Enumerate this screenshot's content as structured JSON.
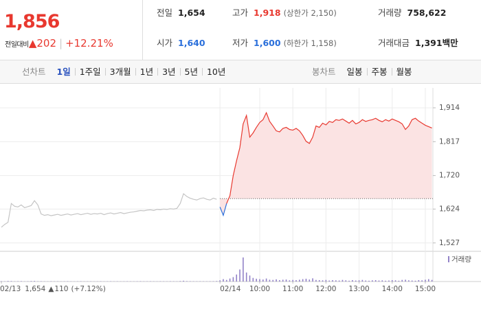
{
  "quote": {
    "price": "1,856",
    "change_label": "전일대비",
    "change": "202",
    "change_pct": "+12.21%"
  },
  "stats": [
    {
      "label": "전일",
      "value": "1,654"
    },
    {
      "label": "고가",
      "value": "1,918",
      "note": "(상한가 2,150)"
    },
    {
      "label": "거래량",
      "value": "758,622"
    },
    {
      "label": "시가",
      "value": "1,640"
    },
    {
      "label": "저가",
      "value": "1,600",
      "note": "(하한가 1,158)"
    },
    {
      "label": "거래대금",
      "value": "1,391",
      "unit": "백만"
    }
  ],
  "tabs": {
    "line_label": "선차트",
    "line_periods": [
      "1일",
      "1주일",
      "3개월",
      "1년",
      "3년",
      "5년",
      "10년"
    ],
    "line_active": 0,
    "candle_label": "봉차트",
    "candle_periods": [
      "일봉",
      "주봉",
      "월봉"
    ]
  },
  "footer": {
    "prev_close": "1,654",
    "prev_change": "110",
    "prev_change_pct": "(+7.12%)"
  },
  "chart_data": {
    "type": "line",
    "categories": [
      "02/13",
      null,
      null,
      null,
      null,
      null,
      null,
      null,
      null,
      null,
      null,
      null,
      null,
      null,
      null,
      null,
      null,
      null,
      null,
      null,
      null,
      null,
      null,
      null,
      null,
      null,
      null,
      null,
      null,
      null,
      null,
      null,
      null,
      null,
      null,
      null,
      null,
      null,
      null,
      null,
      null,
      null,
      null,
      null,
      null,
      null,
      null,
      null,
      null,
      null,
      null,
      null,
      null,
      null,
      null,
      null,
      null,
      null,
      null,
      null,
      null,
      null,
      null,
      null,
      null,
      null,
      "02/14",
      null,
      null,
      null,
      null,
      null,
      null,
      null,
      null,
      null,
      null,
      null,
      "10:00",
      null,
      null,
      null,
      null,
      null,
      null,
      null,
      null,
      null,
      "11:00",
      null,
      null,
      null,
      null,
      null,
      null,
      null,
      null,
      null,
      "12:00",
      null,
      null,
      null,
      null,
      null,
      null,
      null,
      null,
      null,
      "13:00",
      null,
      null,
      null,
      null,
      null,
      null,
      null,
      null,
      null,
      "14:00",
      null,
      null,
      null,
      null,
      null,
      null,
      null,
      null,
      null,
      "15:00",
      null,
      null
    ],
    "series": [
      {
        "color": "#c4c4c4",
        "values": [
          1572,
          1580,
          1586,
          1640,
          1632,
          1630,
          1636,
          1628,
          1631,
          1634,
          1648,
          1636,
          1610,
          1606,
          1608,
          1605,
          1607,
          1609,
          1606,
          1608,
          1610,
          1607,
          1609,
          1611,
          1608,
          1610,
          1612,
          1609,
          1611,
          1610,
          1612,
          1608,
          1611,
          1613,
          1610,
          1612,
          1614,
          1611,
          1613,
          1615,
          1616,
          1618,
          1620,
          1619,
          1621,
          1622,
          1620,
          1623,
          1622,
          1624,
          1623,
          1625,
          1624,
          1626,
          1640,
          1668,
          1660,
          1655,
          1652,
          1650,
          1654,
          1656,
          1652,
          1650,
          1655,
          1652,
          null,
          null,
          null,
          null,
          null,
          null,
          null,
          null,
          null,
          null,
          null,
          null,
          null,
          null,
          null,
          null,
          null,
          null,
          null,
          null,
          null,
          null,
          null,
          null,
          null,
          null,
          null,
          null,
          null,
          null,
          null,
          null,
          null,
          null,
          null,
          null,
          null,
          null,
          null,
          null,
          null,
          null,
          null,
          null,
          null,
          null,
          null,
          null,
          null,
          null,
          null,
          null,
          null,
          null,
          null,
          null,
          null,
          null,
          null,
          null,
          null,
          null,
          null,
          null,
          null
        ]
      },
      {
        "color": "#e8382f",
        "down_color": "#2a6fdb",
        "fill": "#fbe3e3",
        "values": [
          null,
          null,
          null,
          null,
          null,
          null,
          null,
          null,
          null,
          null,
          null,
          null,
          null,
          null,
          null,
          null,
          null,
          null,
          null,
          null,
          null,
          null,
          null,
          null,
          null,
          null,
          null,
          null,
          null,
          null,
          null,
          null,
          null,
          null,
          null,
          null,
          null,
          null,
          null,
          null,
          null,
          null,
          null,
          null,
          null,
          null,
          null,
          null,
          null,
          null,
          null,
          null,
          null,
          null,
          null,
          null,
          null,
          null,
          null,
          null,
          null,
          null,
          null,
          null,
          null,
          null,
          1630,
          1606,
          1640,
          1662,
          1720,
          1762,
          1800,
          1868,
          1892,
          1830,
          1842,
          1858,
          1872,
          1880,
          1900,
          1875,
          1862,
          1848,
          1845,
          1855,
          1858,
          1852,
          1850,
          1855,
          1848,
          1835,
          1818,
          1812,
          1830,
          1862,
          1858,
          1870,
          1865,
          1875,
          1872,
          1880,
          1878,
          1882,
          1876,
          1870,
          1878,
          1868,
          1872,
          1880,
          1875,
          1878,
          1880,
          1884,
          1878,
          1874,
          1880,
          1876,
          1882,
          1878,
          1874,
          1868,
          1852,
          1862,
          1880,
          1884,
          1876,
          1870,
          1864,
          1860,
          1856
        ]
      }
    ],
    "baseline": 1654,
    "ylim": [
      1503,
      1971
    ],
    "yticks": [
      {
        "value": 1527,
        "label": "1,527"
      },
      {
        "value": 1624,
        "label": "1,624"
      },
      {
        "value": 1720,
        "label": "1,720"
      },
      {
        "value": 1817,
        "label": "1,817"
      },
      {
        "value": 1914,
        "label": "1,914"
      }
    ],
    "grid": true,
    "volume": {
      "label": "거래량",
      "color": "#9282c8",
      "ylim": [
        0,
        130000
      ],
      "values": [
        2000,
        1500,
        3000,
        2500,
        1200,
        1800,
        2200,
        1000,
        1500,
        2600,
        3000,
        1400,
        1800,
        1200,
        900,
        1600,
        1100,
        1400,
        900,
        1300,
        1700,
        1000,
        800,
        1200,
        1500,
        900,
        1100,
        1300,
        800,
        1000,
        1400,
        900,
        1200,
        1600,
        1000,
        1300,
        900,
        1100,
        1500,
        1200,
        1000,
        1400,
        1800,
        1100,
        1300,
        1600,
        1200,
        1000,
        1500,
        1300,
        1100,
        1700,
        1400,
        1200,
        2500,
        4000,
        2200,
        1800,
        1500,
        1300,
        1600,
        1400,
        1200,
        1500,
        1800,
        2500,
        6000,
        12000,
        8000,
        15000,
        22000,
        35000,
        60000,
        120000,
        45000,
        30000,
        18000,
        14000,
        12000,
        10000,
        15000,
        9000,
        8000,
        11000,
        7000,
        9000,
        10000,
        6000,
        8000,
        7000,
        9000,
        12000,
        14000,
        10000,
        16000,
        8000,
        7000,
        6000,
        8000,
        5000,
        7000,
        6000,
        5000,
        8000,
        6000,
        4000,
        7000,
        5000,
        6000,
        8000,
        5000,
        4000,
        6000,
        7000,
        5000,
        6000,
        4000,
        5000,
        7000,
        6000,
        4000,
        8000,
        9000,
        6000,
        5000,
        4000,
        7000,
        6000,
        9000,
        12000,
        8000
      ]
    }
  }
}
